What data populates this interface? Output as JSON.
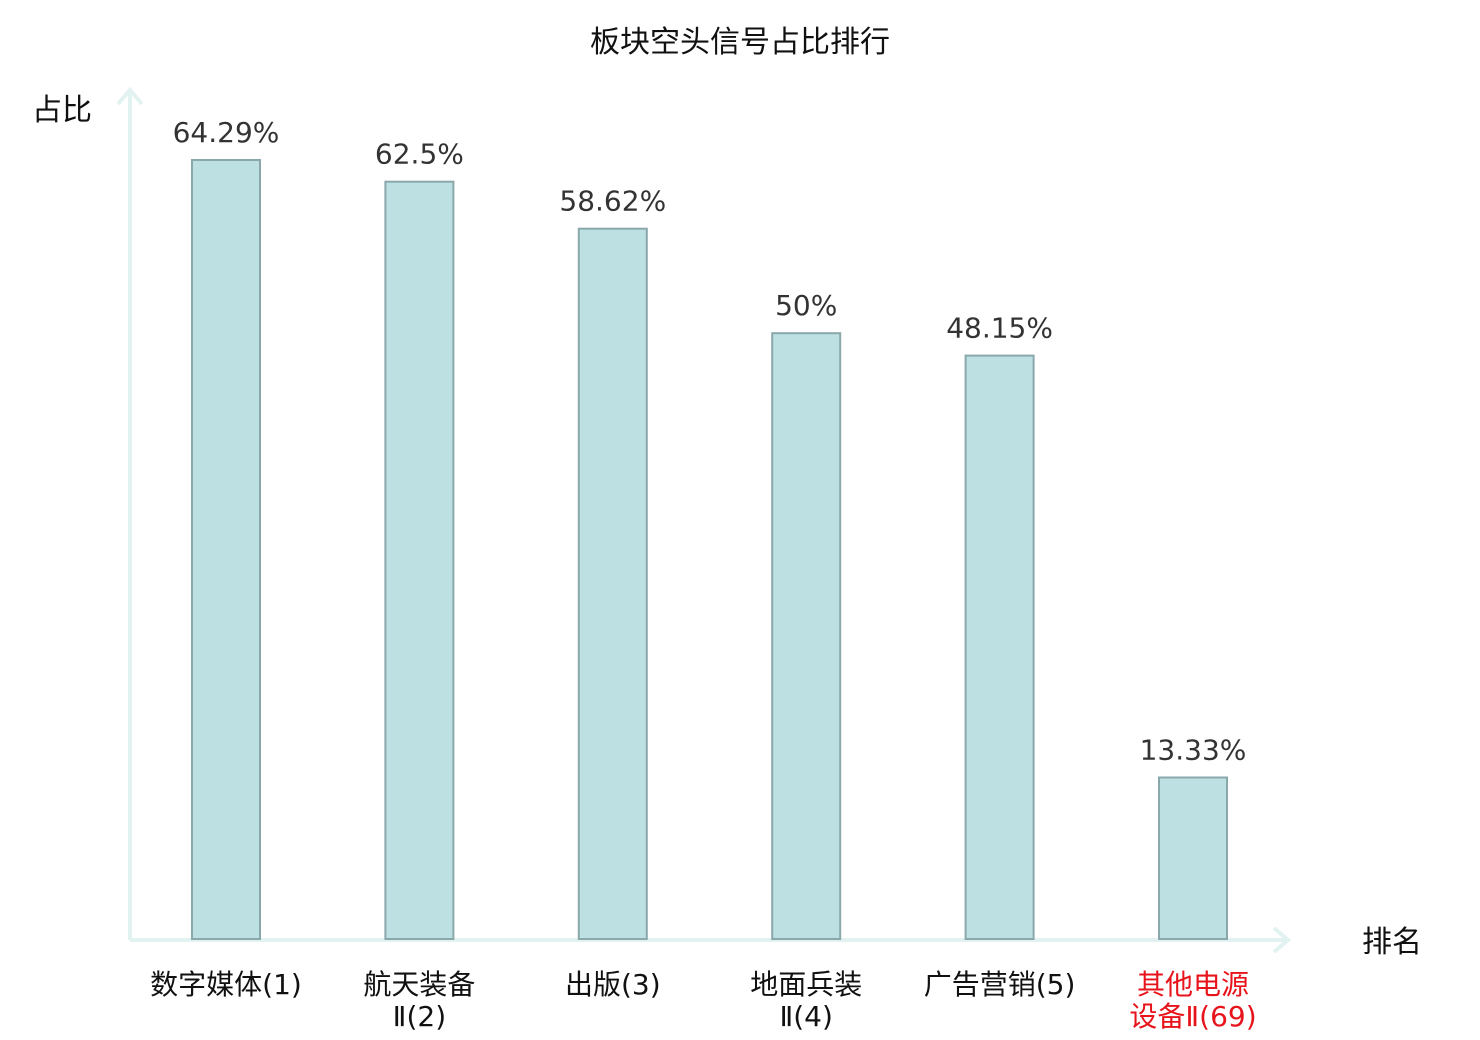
{
  "chart_data": {
    "type": "bar",
    "title": "板块空头信号占比排行",
    "ylabel": "占比",
    "xlabel": "排名",
    "ylim": [
      0,
      70
    ],
    "grid": false,
    "categories": [
      "数字媒体(1)",
      "航天装备Ⅱ(2)",
      "出版(3)",
      "地面兵装Ⅱ(4)",
      "广告营销(5)",
      "其他电源设备Ⅱ(69)"
    ],
    "category_lines": [
      [
        "数字媒体(1)"
      ],
      [
        "航天装备",
        "Ⅱ(2)"
      ],
      [
        "出版(3)"
      ],
      [
        "地面兵装",
        "Ⅱ(4)"
      ],
      [
        "广告营销(5)"
      ],
      [
        "其他电源",
        "设备Ⅱ(69)"
      ]
    ],
    "values": [
      64.29,
      62.5,
      58.62,
      50,
      48.15,
      13.33
    ],
    "value_labels": [
      "64.29%",
      "62.5%",
      "58.62%",
      "50%",
      "48.15%",
      "13.33%"
    ],
    "highlight_index": 5,
    "colors": {
      "bar_fill": "#bde0e3",
      "bar_stroke": "#8aa8ab",
      "axis": "#e2f2f0",
      "highlight_text": "#e8141b"
    }
  }
}
